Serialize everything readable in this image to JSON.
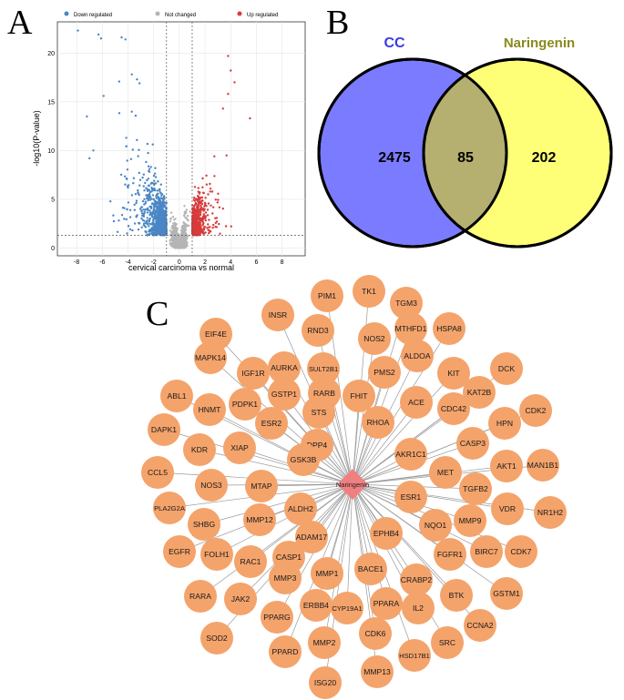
{
  "panels": {
    "a": "A",
    "b": "B",
    "c": "C"
  },
  "volcano": {
    "legend": [
      {
        "label": "Down regulated",
        "color": "#4a86c5"
      },
      {
        "label": "Not changed",
        "color": "#b5b5b5"
      },
      {
        "label": "Up regulated",
        "color": "#d93a3a"
      }
    ],
    "xlabel": "cervical carcinoma vs normal",
    "ylabel": "-log10(P-value)",
    "xticks": [
      "-8",
      "-6",
      "-4",
      "-2",
      "0",
      "2",
      "4",
      "6",
      "8"
    ],
    "yticks": [
      "0",
      "5",
      "10",
      "15",
      "20"
    ]
  },
  "venn": {
    "cc_label": "CC",
    "naringenin_label": "Naringenin",
    "cc_only": "2475",
    "overlap": "85",
    "naringenin_only": "202",
    "cc_color": "#7b7bff",
    "naringenin_color": "#ffff77",
    "overlap_color": "#b5b070"
  },
  "network": {
    "center_label": "Naringenin",
    "center_color": "#f08080",
    "node_color": "#f4a36b",
    "edge_color": "#9a9a9a",
    "nodes": [
      "TK1",
      "TGM3",
      "PIM1",
      "MTHFD1",
      "HSPA8",
      "INSR",
      "NOS2",
      "RND3",
      "SULT2B1",
      "EIF4E",
      "ALDOA",
      "KIT",
      "DCK",
      "MAPK14",
      "AURKA",
      "PMS2",
      "IGF1R",
      "RARB",
      "KAT2B",
      "CDK2",
      "GSTP1",
      "FHIT",
      "ACE",
      "ABL1",
      "HNMT",
      "PDPK1",
      "STS",
      "CDC42",
      "HPN",
      "ESR2",
      "RHOA",
      "DAPK1",
      "CASP3",
      "AKT1",
      "MAN1B1",
      "XIAP",
      "KDR",
      "DPP4",
      "AKR1C1",
      "GSK3B",
      "CCL5",
      "MET",
      "TGFB2",
      "NOS3",
      "MTAP",
      "ESR1",
      "VDR",
      "NR1H2",
      "PLA2G2A",
      "ALDH2",
      "MMP9",
      "MMP12",
      "NQO1",
      "SHBG",
      "ADAM17",
      "EPHB4",
      "BIRC7",
      "CDK7",
      "FGFR1",
      "EGFR",
      "FOLH1",
      "CASP1",
      "RAC1",
      "CRABP2",
      "BACE1",
      "MMP1",
      "MMP3",
      "GSTM1",
      "BTK",
      "RARA",
      "JAK2",
      "PPARA",
      "IL2",
      "CYP19A1",
      "CCNA2",
      "ERBB4",
      "PPARG",
      "SRC",
      "SOD2",
      "CDK6",
      "MMP2",
      "HSD17B1",
      "PPARD",
      "ISG20",
      "MMP13"
    ]
  }
}
